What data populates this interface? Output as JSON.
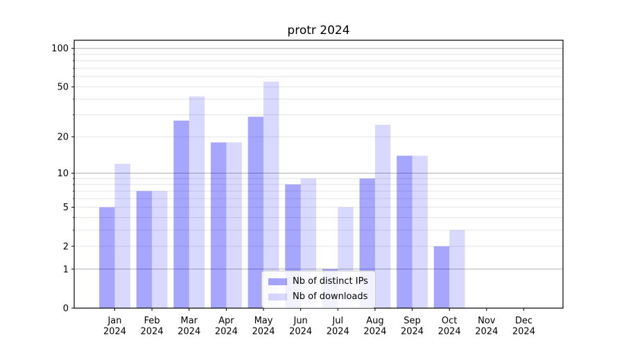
{
  "chart_data": {
    "type": "bar",
    "title": "protr 2024",
    "categories": [
      "Jan",
      "Feb",
      "Mar",
      "Apr",
      "May",
      "Jun",
      "Jul",
      "Aug",
      "Sep",
      "Oct",
      "Nov",
      "Dec"
    ],
    "x_sub_label": "2024",
    "series": [
      {
        "name": "Nb of distinct IPs",
        "color": "#a6a6ff",
        "fill_rgba": "rgba(0,0,255,0.35)",
        "values": [
          5,
          7,
          27,
          18,
          29,
          8,
          1,
          9,
          14,
          2,
          0,
          0
        ]
      },
      {
        "name": "Nb of downloads",
        "color": "#d9d9ff",
        "fill_rgba": "rgba(0,0,255,0.15)",
        "values": [
          12,
          7,
          42,
          18,
          55,
          9,
          5,
          25,
          14,
          3,
          0,
          0
        ]
      }
    ],
    "xlabel": "",
    "ylabel": "",
    "y_axis": {
      "scale": "log10(1+value)",
      "tick_labels": [
        "0",
        "1",
        "2",
        "5",
        "10",
        "20",
        "50",
        "100"
      ],
      "ticks": [
        0,
        1,
        2,
        5,
        10,
        20,
        50,
        100
      ],
      "major_gridlines": [
        1,
        10,
        100
      ],
      "minor_gridlines": [
        2,
        3,
        4,
        5,
        6,
        7,
        8,
        9,
        20,
        30,
        40,
        50,
        60,
        70,
        80,
        90
      ],
      "ylim": [
        0,
        113
      ]
    },
    "legend": {
      "position": "lower center",
      "entries": [
        "Nb of distinct IPs",
        "Nb of downloads"
      ]
    },
    "colors": {
      "major_grid": "#b0b0b0",
      "minor_grid": "#e4e4e4",
      "axis": "#000000",
      "text": "#000000",
      "background": "#ffffff"
    },
    "grid": "on"
  }
}
